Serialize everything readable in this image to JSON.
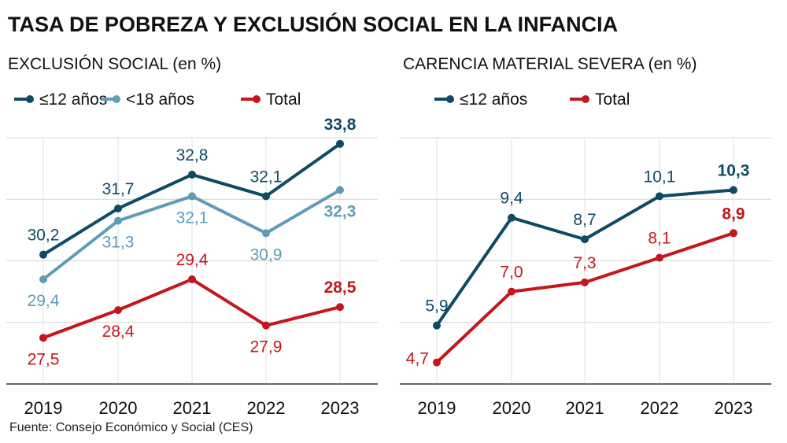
{
  "title": "TASA DE POBREZA Y EXCLUSIÓN SOCIAL EN LA INFANCIA",
  "source": "Fuente: Consejo Económico y Social (CES)",
  "colors": {
    "dark": "#0e4a66",
    "light": "#5e9cb8",
    "red": "#c4161c"
  },
  "chart_data": [
    {
      "type": "line",
      "title": "EXCLUSIÓN SOCIAL",
      "unit": "(en %)",
      "categories": [
        "2019",
        "2020",
        "2021",
        "2022",
        "2023"
      ],
      "ylim": [
        26,
        34
      ],
      "grid": true,
      "legend": "top",
      "series": [
        {
          "name": "≤12 años",
          "color": "#0e4a66",
          "values": [
            30.2,
            31.7,
            32.8,
            32.1,
            33.8
          ],
          "labels": [
            "30,2",
            "31,7",
            "32,8",
            "32,1",
            "33,8"
          ]
        },
        {
          "name": "<18 años",
          "color": "#5e9cb8",
          "values": [
            29.4,
            31.3,
            32.1,
            30.9,
            32.3
          ],
          "labels": [
            "29,4",
            "31,3",
            "32,1",
            "30,9",
            "32,3"
          ]
        },
        {
          "name": "Total",
          "color": "#c4161c",
          "values": [
            27.5,
            28.4,
            29.4,
            27.9,
            28.5
          ],
          "labels": [
            "27,5",
            "28,4",
            "29,4",
            "27,9",
            "28,5"
          ]
        }
      ]
    },
    {
      "type": "line",
      "title": "CARENCIA MATERIAL SEVERA",
      "unit": "(en %)",
      "categories": [
        "2019",
        "2020",
        "2021",
        "2022",
        "2023"
      ],
      "ylim": [
        4,
        12
      ],
      "grid": true,
      "legend": "top",
      "series": [
        {
          "name": "≤12 años",
          "color": "#0e4a66",
          "values": [
            5.9,
            9.4,
            8.7,
            10.1,
            10.3
          ],
          "labels": [
            "5,9",
            "9,4",
            "8,7",
            "10,1",
            "10,3"
          ]
        },
        {
          "name": "Total",
          "color": "#c4161c",
          "values": [
            4.7,
            7.0,
            7.3,
            8.1,
            8.9
          ],
          "labels": [
            "4,7",
            "7,0",
            "7,3",
            "8,1",
            "8,9"
          ]
        }
      ]
    }
  ]
}
